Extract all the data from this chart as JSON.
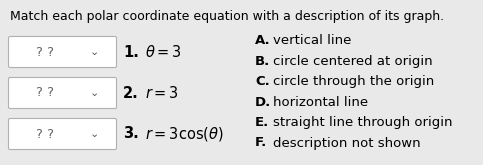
{
  "title": "Match each polar coordinate equation with a description of its graph.",
  "background_color": "#e9e9e9",
  "items": [
    {
      "number": "1.",
      "equation": "$\\theta = 3$"
    },
    {
      "number": "2.",
      "equation": "$r = 3$"
    },
    {
      "number": "3.",
      "equation": "$r = 3\\cos(\\theta)$"
    }
  ],
  "options": [
    {
      "letter": "A.",
      "desc": "vertical line"
    },
    {
      "letter": "B.",
      "desc": "circle centered at origin"
    },
    {
      "letter": "C.",
      "desc": "circle through the origin"
    },
    {
      "letter": "D.",
      "desc": "horizontal line"
    },
    {
      "letter": "E.",
      "desc": "straight line through origin"
    },
    {
      "letter": "F.",
      "desc": "description not shown"
    }
  ],
  "title_fontsize": 9.0,
  "eq_fontsize": 10.5,
  "opt_fontsize": 9.5,
  "qmark_fontsize": 9.5
}
